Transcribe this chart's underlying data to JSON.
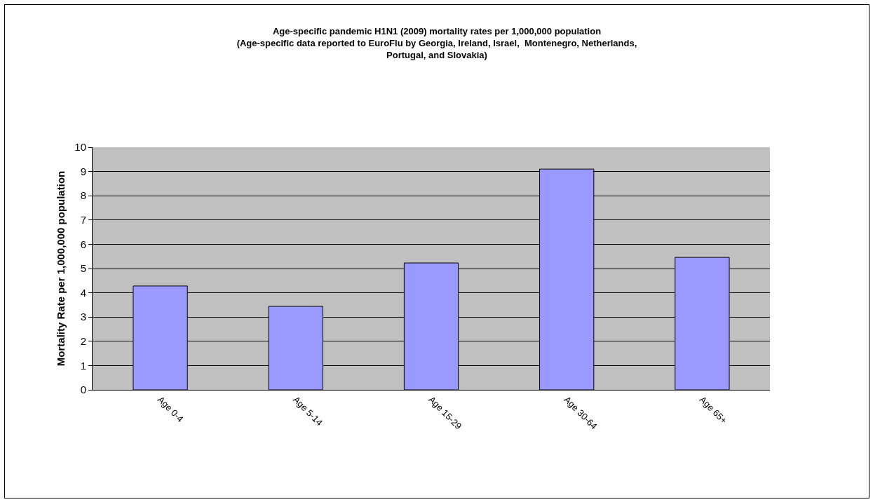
{
  "chart_data": {
    "type": "bar",
    "title": "Age-specific pandemic H1N1 (2009) mortality rates per 1,000,000 population\n(Age-specific data reported to EuroFlu by Georgia, Ireland, Israel,  Montenegro, Netherlands,\nPortugal, and Slovakia)",
    "ylabel": "Mortality Rate per 1,000,000 population",
    "categories": [
      "Age 0-4",
      "Age 5-14",
      "Age 15-29",
      "Age 30-64",
      "Age 65+"
    ],
    "values": [
      4.28,
      3.44,
      5.23,
      9.1,
      5.46
    ],
    "color": "#9999ff",
    "ylim": [
      0,
      10
    ],
    "yticks": [
      0,
      1,
      2,
      3,
      4,
      5,
      6,
      7,
      8,
      9,
      10
    ],
    "grid": "y",
    "legend": false
  }
}
